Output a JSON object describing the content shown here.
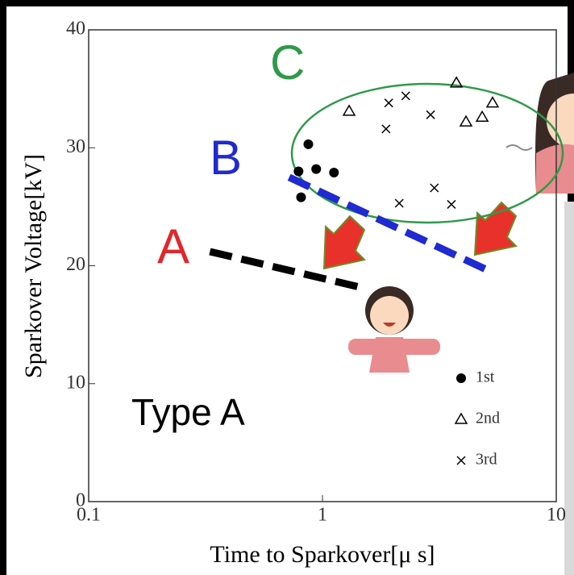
{
  "chart_data": {
    "type": "scatter",
    "xlabel": "Time to Sparkover[μ s]",
    "ylabel": "Sparkover Voltage[kV]",
    "xlog": true,
    "xlim": [
      0.1,
      10
    ],
    "xticks": [
      0.1,
      1,
      10
    ],
    "ylim": [
      0,
      40
    ],
    "yticks": [
      0,
      10,
      20,
      30,
      40
    ],
    "series": [
      {
        "name": "1st",
        "marker": "circle",
        "color": "#000000",
        "x": [
          0.87,
          0.79,
          0.94,
          0.81,
          1.12
        ],
        "values": [
          30.3,
          28.0,
          28.2,
          25.8,
          27.9
        ]
      },
      {
        "name": "2nd",
        "marker": "triangle",
        "color": "#000000",
        "x": [
          1.3,
          3.74,
          4.11,
          4.82,
          5.34
        ],
        "values": [
          33.1,
          35.5,
          32.2,
          32.6,
          33.8
        ]
      },
      {
        "name": "3rd",
        "marker": "x",
        "color": "#000000",
        "x": [
          1.87,
          1.92,
          2.27,
          2.9,
          3.01,
          3.56,
          2.13
        ],
        "values": [
          31.6,
          33.8,
          34.4,
          32.8,
          26.6,
          25.2,
          25.3
        ]
      }
    ],
    "trend_lines": [
      {
        "label": "A",
        "label_color": "#e0262b",
        "color": "#000000",
        "x": [
          0.33,
          1.43
        ],
        "values": [
          21.2,
          18.2
        ]
      },
      {
        "label": "B",
        "label_color": "#1f2ad1",
        "color": "#1f2ad1",
        "x": [
          0.72,
          4.99
        ],
        "values": [
          27.5,
          19.7
        ]
      }
    ],
    "region": {
      "label": "C",
      "color": "#2e9a48"
    },
    "annotation": "Type A"
  }
}
